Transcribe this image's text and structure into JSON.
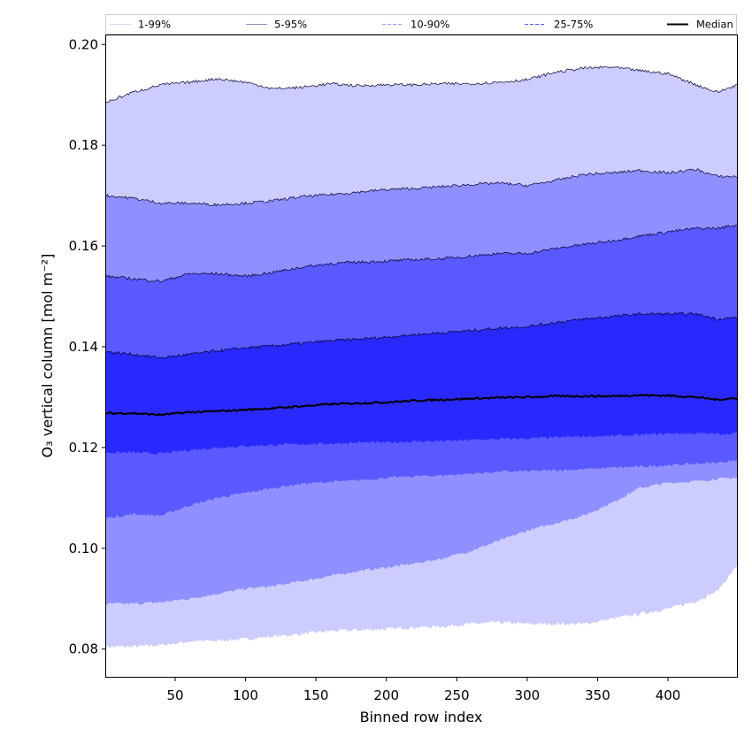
{
  "chart_data": {
    "type": "area",
    "title": "",
    "xlabel": "Binned row index",
    "ylabel": "O₃ vertical column [mol m⁻²]",
    "xlim": [
      1,
      449
    ],
    "ylim": [
      0.0745,
      0.2018
    ],
    "xticks": [
      50,
      100,
      150,
      200,
      250,
      300,
      350,
      400
    ],
    "yticks": [
      0.08,
      0.1,
      0.12,
      0.14,
      0.16,
      0.18,
      0.2
    ],
    "ytick_labels": [
      "0.08",
      "0.10",
      "0.12",
      "0.14",
      "0.16",
      "0.18",
      "0.20"
    ],
    "legend": {
      "position": "top, above plot",
      "entries": [
        {
          "label": "1-99%",
          "color": "#d9d9f0",
          "style": "solid"
        },
        {
          "label": "5-95%",
          "color": "#8f8fbf",
          "style": "solid"
        },
        {
          "label": "10-90%",
          "color": "#9a9aff",
          "style": "dashed"
        },
        {
          "label": "25-75%",
          "color": "#5b5bff",
          "style": "dashed"
        },
        {
          "label": "Median",
          "color": "#000000",
          "style": "solid"
        }
      ]
    },
    "x": [
      1,
      20,
      40,
      60,
      80,
      100,
      120,
      140,
      160,
      180,
      200,
      220,
      240,
      260,
      280,
      300,
      320,
      340,
      360,
      380,
      400,
      420,
      435,
      449
    ],
    "series": [
      {
        "name": "p1",
        "values": [
          0.0805,
          0.0805,
          0.0808,
          0.0815,
          0.0817,
          0.082,
          0.0825,
          0.083,
          0.0836,
          0.0838,
          0.084,
          0.0843,
          0.0845,
          0.085,
          0.0853,
          0.085,
          0.085,
          0.085,
          0.086,
          0.087,
          0.088,
          0.0895,
          0.0915,
          0.0965
        ]
      },
      {
        "name": "p5",
        "values": [
          0.089,
          0.089,
          0.0893,
          0.09,
          0.091,
          0.092,
          0.0925,
          0.0935,
          0.0945,
          0.0955,
          0.0962,
          0.097,
          0.098,
          0.0995,
          0.1015,
          0.1035,
          0.105,
          0.1065,
          0.109,
          0.112,
          0.113,
          0.1133,
          0.1138,
          0.114
        ]
      },
      {
        "name": "p10",
        "values": [
          0.106,
          0.1068,
          0.1065,
          0.1085,
          0.11,
          0.111,
          0.112,
          0.1128,
          0.1132,
          0.1135,
          0.114,
          0.1143,
          0.1145,
          0.1148,
          0.1152,
          0.1153,
          0.1155,
          0.1157,
          0.116,
          0.1162,
          0.1165,
          0.1168,
          0.117,
          0.1175
        ]
      },
      {
        "name": "p25",
        "values": [
          0.119,
          0.119,
          0.1188,
          0.1195,
          0.12,
          0.1203,
          0.1205,
          0.1207,
          0.1208,
          0.121,
          0.121,
          0.1212,
          0.1213,
          0.1215,
          0.1217,
          0.1218,
          0.122,
          0.1222,
          0.1223,
          0.1225,
          0.1228,
          0.1228,
          0.1227,
          0.1228
        ]
      },
      {
        "name": "median",
        "values": [
          0.1268,
          0.1268,
          0.1265,
          0.127,
          0.1272,
          0.1275,
          0.1278,
          0.1282,
          0.1286,
          0.1288,
          0.129,
          0.1293,
          0.1295,
          0.1297,
          0.1299,
          0.13,
          0.1302,
          0.1302,
          0.1302,
          0.1304,
          0.1303,
          0.13,
          0.1295,
          0.1298
        ]
      },
      {
        "name": "p75",
        "values": [
          0.139,
          0.1385,
          0.1378,
          0.1385,
          0.1392,
          0.1398,
          0.1402,
          0.1407,
          0.1412,
          0.1415,
          0.1419,
          0.1424,
          0.1428,
          0.1432,
          0.1437,
          0.144,
          0.1448,
          0.1455,
          0.146,
          0.1465,
          0.1465,
          0.1465,
          0.1455,
          0.1458
        ]
      },
      {
        "name": "p90",
        "values": [
          0.154,
          0.1535,
          0.153,
          0.1545,
          0.1545,
          0.154,
          0.1548,
          0.1558,
          0.1565,
          0.1568,
          0.157,
          0.1573,
          0.1575,
          0.158,
          0.1585,
          0.1585,
          0.1595,
          0.1603,
          0.161,
          0.162,
          0.1628,
          0.1635,
          0.1635,
          0.1642
        ]
      },
      {
        "name": "p95",
        "values": [
          0.17,
          0.1695,
          0.1685,
          0.1685,
          0.1682,
          0.1685,
          0.169,
          0.1698,
          0.1702,
          0.1707,
          0.1712,
          0.1714,
          0.1718,
          0.1722,
          0.1725,
          0.172,
          0.173,
          0.1742,
          0.1745,
          0.175,
          0.1745,
          0.1752,
          0.1738,
          0.1738
        ]
      },
      {
        "name": "p99",
        "values": [
          0.1885,
          0.1905,
          0.192,
          0.1925,
          0.1932,
          0.1925,
          0.1912,
          0.1915,
          0.1922,
          0.1918,
          0.192,
          0.192,
          0.1922,
          0.1922,
          0.1925,
          0.193,
          0.1945,
          0.1953,
          0.1955,
          0.1948,
          0.1942,
          0.192,
          0.1905,
          0.192
        ]
      }
    ],
    "bands": [
      {
        "name": "1-99%",
        "lower": "p1",
        "upper": "p99",
        "fill": "#ccccff",
        "edge": "p99"
      },
      {
        "name": "5-95%",
        "lower": "p5",
        "upper": "p95",
        "fill": "#8f8fff",
        "edge": "p95"
      },
      {
        "name": "10-90%",
        "lower": "p10",
        "upper": "p90",
        "fill": "#5959ff",
        "edge": "p90"
      },
      {
        "name": "25-75%",
        "lower": "p25",
        "upper": "p75",
        "fill": "#2929ff",
        "edge": "p75"
      }
    ]
  }
}
